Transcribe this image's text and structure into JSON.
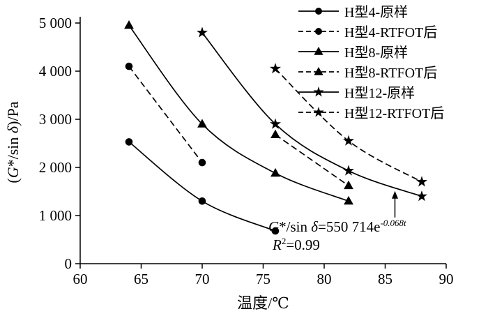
{
  "chart_data": {
    "type": "line",
    "title": "",
    "xlabel": "温度/℃",
    "ylabel": "(G*/sin δ)/Pa",
    "ylabel_parts": {
      "open": "(",
      "g": "G",
      "mid": "*/sin ",
      "delta": "δ",
      "close": ")/Pa"
    },
    "xlim": [
      60,
      90
    ],
    "ylim": [
      0,
      5000
    ],
    "x_ticks": [
      60,
      65,
      70,
      75,
      80,
      85,
      90
    ],
    "x_tick_labels": [
      "60",
      "65",
      "70",
      "75",
      "80",
      "85",
      "90"
    ],
    "y_ticks": [
      0,
      1000,
      2000,
      3000,
      4000,
      5000
    ],
    "y_tick_labels": [
      "0",
      "1 000",
      "2 000",
      "3 000",
      "4 000",
      "5 000"
    ],
    "grid": false,
    "legend_position": "top-right",
    "line_color": "#000000",
    "background_color": "#ffffff",
    "series": [
      {
        "name": "H型4-原样",
        "marker": "circle",
        "line": "solid",
        "x": [
          64,
          70,
          76
        ],
        "y": [
          2530,
          1300,
          680
        ]
      },
      {
        "name": "H型4-RTFOT后",
        "marker": "circle",
        "line": "dashed",
        "x": [
          64,
          70
        ],
        "y": [
          4100,
          2100
        ]
      },
      {
        "name": "H型8-原样",
        "marker": "triangle",
        "line": "solid",
        "x": [
          64,
          70,
          76,
          82
        ],
        "y": [
          4950,
          2900,
          1880,
          1300
        ]
      },
      {
        "name": "H型8-RTFOT后",
        "marker": "triangle",
        "line": "dashed",
        "x": [
          76,
          82
        ],
        "y": [
          2680,
          1620
        ]
      },
      {
        "name": "H型12-原样",
        "marker": "star",
        "line": "solid",
        "x": [
          70,
          76,
          82,
          88
        ],
        "y": [
          4800,
          2900,
          1930,
          1400
        ]
      },
      {
        "name": "H型12-RTFOT后",
        "marker": "star",
        "line": "dashed",
        "x": [
          76,
          82,
          88
        ],
        "y": [
          4050,
          2550,
          1700
        ]
      }
    ],
    "annotation": {
      "equation": {
        "g": "G",
        "mid": "*/sin ",
        "delta": "δ",
        "body": "=550 714e",
        "exponent": "-0.068t"
      },
      "r_squared": {
        "symbol": "R",
        "sup": "2",
        "value": "=0.99"
      },
      "arrow": {
        "x": 85.8,
        "y_from": 960,
        "y_to": 1510
      }
    }
  }
}
